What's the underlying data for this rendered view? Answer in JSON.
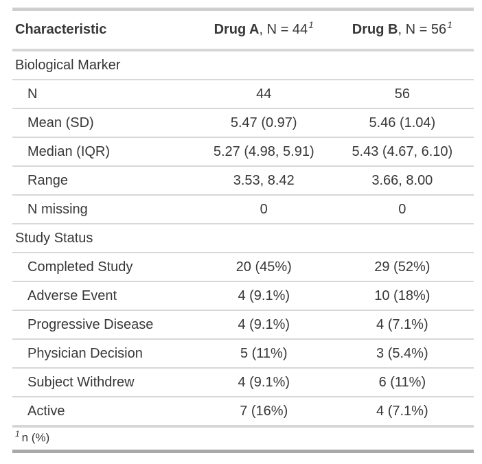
{
  "table": {
    "columns": [
      {
        "label": "Characteristic"
      },
      {
        "drug": "Drug A",
        "n_label": ", N = 44",
        "footnote_mark": "1"
      },
      {
        "drug": "Drug B",
        "n_label": ", N = 56",
        "footnote_mark": "1"
      }
    ],
    "groups": [
      {
        "label": "Biological Marker",
        "rows": [
          {
            "label": "N",
            "drug_a": "44",
            "drug_b": "56"
          },
          {
            "label": "Mean (SD)",
            "drug_a": "5.47 (0.97)",
            "drug_b": "5.46 (1.04)"
          },
          {
            "label": "Median (IQR)",
            "drug_a": "5.27 (4.98, 5.91)",
            "drug_b": "5.43 (4.67, 6.10)"
          },
          {
            "label": "Range",
            "drug_a": "3.53, 8.42",
            "drug_b": "3.66, 8.00"
          },
          {
            "label": "N missing",
            "drug_a": "0",
            "drug_b": "0"
          }
        ]
      },
      {
        "label": "Study Status",
        "rows": [
          {
            "label": "Completed Study",
            "drug_a": "20 (45%)",
            "drug_b": "29 (52%)"
          },
          {
            "label": "Adverse Event",
            "drug_a": "4 (9.1%)",
            "drug_b": "10 (18%)"
          },
          {
            "label": "Progressive Disease",
            "drug_a": "4 (9.1%)",
            "drug_b": "4 (7.1%)"
          },
          {
            "label": "Physician Decision",
            "drug_a": "5 (11%)",
            "drug_b": "3 (5.4%)"
          },
          {
            "label": "Subject Withdrew",
            "drug_a": "4 (9.1%)",
            "drug_b": "6 (11%)"
          },
          {
            "label": "Active",
            "drug_a": "7 (16%)",
            "drug_b": "4 (7.1%)"
          }
        ]
      }
    ],
    "footnote": {
      "mark": "1",
      "text": "n (%)"
    }
  },
  "colors": {
    "text": "#373737",
    "border_top": "#cfcfcf",
    "border_bottom": "#a9a9a9",
    "row_divider": "#d7d7d7",
    "section_divider": "#d6d6d6"
  },
  "chart_data": {
    "type": "table",
    "columns": [
      "Characteristic",
      "Drug A, N = 44",
      "Drug B, N = 56"
    ],
    "rows": [
      [
        "Biological Marker",
        "",
        ""
      ],
      [
        "N",
        "44",
        "56"
      ],
      [
        "Mean (SD)",
        "5.47 (0.97)",
        "5.46 (1.04)"
      ],
      [
        "Median (IQR)",
        "5.27 (4.98, 5.91)",
        "5.43 (4.67, 6.10)"
      ],
      [
        "Range",
        "3.53, 8.42",
        "3.66, 8.00"
      ],
      [
        "N missing",
        "0",
        "0"
      ],
      [
        "Study Status",
        "",
        ""
      ],
      [
        "Completed Study",
        "20 (45%)",
        "29 (52%)"
      ],
      [
        "Adverse Event",
        "4 (9.1%)",
        "10 (18%)"
      ],
      [
        "Progressive Disease",
        "4 (9.1%)",
        "4 (7.1%)"
      ],
      [
        "Physician Decision",
        "5 (11%)",
        "3 (5.4%)"
      ],
      [
        "Subject Withdrew",
        "4 (9.1%)",
        "6 (11%)"
      ],
      [
        "Active",
        "7 (16%)",
        "4 (7.1%)"
      ]
    ],
    "footnote": "1 n (%)",
    "layout_hints": {
      "value_columns_align": "center",
      "group_rows_span_full_width": true
    }
  }
}
